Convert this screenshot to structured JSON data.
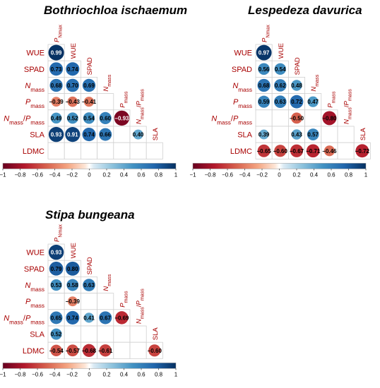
{
  "chart_data": [
    {
      "type": "heatmap",
      "title": "Bothriochloa ischaemum",
      "variables": [
        "P_Nmax",
        "WUE",
        "SPAD",
        "N_mass",
        "P_mass",
        "N_mass/P_mass",
        "SLA",
        "LDMC"
      ],
      "row_labels": [
        "WUE",
        "SPAD",
        "N_mass",
        "P_mass",
        "N_mass/P_mass",
        "SLA",
        "LDMC"
      ],
      "column_labels": [
        "P_Nmax",
        "WUE",
        "SPAD",
        "N_mass",
        "P_mass",
        "N_mass/P_mass",
        "SLA"
      ],
      "cells": [
        {
          "row": "WUE",
          "col": "P_Nmax",
          "value": 0.99
        },
        {
          "row": "SPAD",
          "col": "P_Nmax",
          "value": 0.73
        },
        {
          "row": "SPAD",
          "col": "WUE",
          "value": 0.74
        },
        {
          "row": "N_mass",
          "col": "P_Nmax",
          "value": 0.68
        },
        {
          "row": "N_mass",
          "col": "WUE",
          "value": 0.7
        },
        {
          "row": "N_mass",
          "col": "SPAD",
          "value": 0.69
        },
        {
          "row": "P_mass",
          "col": "P_Nmax",
          "value": -0.39
        },
        {
          "row": "P_mass",
          "col": "WUE",
          "value": -0.43
        },
        {
          "row": "P_mass",
          "col": "SPAD",
          "value": -0.41
        },
        {
          "row": "N_mass/P_mass",
          "col": "P_Nmax",
          "value": 0.49
        },
        {
          "row": "N_mass/P_mass",
          "col": "WUE",
          "value": 0.52
        },
        {
          "row": "N_mass/P_mass",
          "col": "SPAD",
          "value": 0.54
        },
        {
          "row": "N_mass/P_mass",
          "col": "N_mass",
          "value": 0.6
        },
        {
          "row": "N_mass/P_mass",
          "col": "P_mass",
          "value": -0.93
        },
        {
          "row": "SLA",
          "col": "P_Nmax",
          "value": 0.93
        },
        {
          "row": "SLA",
          "col": "WUE",
          "value": 0.91
        },
        {
          "row": "SLA",
          "col": "SPAD",
          "value": 0.74
        },
        {
          "row": "SLA",
          "col": "N_mass",
          "value": 0.66
        },
        {
          "row": "SLA",
          "col": "N_mass/P_mass",
          "value": 0.4
        }
      ],
      "colorbar": {
        "min": -1,
        "max": 1,
        "ticks": [
          "−1",
          "−0.8",
          "−0.6",
          "−0.4",
          "−0.2",
          "0",
          "0.2",
          "0.4",
          "0.6",
          "0.8",
          "1"
        ]
      }
    },
    {
      "type": "heatmap",
      "title": "Lespedeza davurica",
      "variables": [
        "P_Nmax",
        "WUE",
        "SPAD",
        "N_mass",
        "P_mass",
        "N_mass/P_mass",
        "SLA",
        "LDMC"
      ],
      "row_labels": [
        "WUE",
        "SPAD",
        "N_mass",
        "P_mass",
        "N_mass/P_mass",
        "SLA",
        "LDMC"
      ],
      "column_labels": [
        "P_Nmax",
        "WUE",
        "SPAD",
        "N_mass",
        "P_mass",
        "N_mass/P_mass",
        "SLA"
      ],
      "cells": [
        {
          "row": "WUE",
          "col": "P_Nmax",
          "value": 0.97
        },
        {
          "row": "SPAD",
          "col": "P_Nmax",
          "value": 0.56
        },
        {
          "row": "SPAD",
          "col": "WUE",
          "value": 0.54
        },
        {
          "row": "N_mass",
          "col": "P_Nmax",
          "value": 0.68
        },
        {
          "row": "N_mass",
          "col": "WUE",
          "value": 0.62
        },
        {
          "row": "N_mass",
          "col": "SPAD",
          "value": 0.48
        },
        {
          "row": "P_mass",
          "col": "P_Nmax",
          "value": 0.59
        },
        {
          "row": "P_mass",
          "col": "WUE",
          "value": 0.63
        },
        {
          "row": "P_mass",
          "col": "SPAD",
          "value": 0.72
        },
        {
          "row": "P_mass",
          "col": "N_mass",
          "value": 0.47
        },
        {
          "row": "N_mass/P_mass",
          "col": "SPAD",
          "value": -0.5
        },
        {
          "row": "N_mass/P_mass",
          "col": "P_mass",
          "value": -0.8
        },
        {
          "row": "SLA",
          "col": "P_Nmax",
          "value": 0.39
        },
        {
          "row": "SLA",
          "col": "SPAD",
          "value": 0.43
        },
        {
          "row": "SLA",
          "col": "N_mass",
          "value": 0.57
        },
        {
          "row": "LDMC",
          "col": "P_Nmax",
          "value": -0.65
        },
        {
          "row": "LDMC",
          "col": "WUE",
          "value": -0.6
        },
        {
          "row": "LDMC",
          "col": "SPAD",
          "value": -0.67
        },
        {
          "row": "LDMC",
          "col": "N_mass",
          "value": -0.71
        },
        {
          "row": "LDMC",
          "col": "P_mass",
          "value": -0.46
        },
        {
          "row": "LDMC",
          "col": "SLA",
          "value": -0.72
        }
      ],
      "colorbar": {
        "min": -1,
        "max": 1,
        "ticks": [
          "−1",
          "−0.8",
          "−0.6",
          "−0.4",
          "−0.2",
          "0",
          "0.2",
          "0.4",
          "0.6",
          "0.8",
          "1"
        ]
      }
    },
    {
      "type": "heatmap",
      "title": "Stipa bungeana",
      "variables": [
        "P_Nmax",
        "WUE",
        "SPAD",
        "N_mass",
        "P_mass",
        "N_mass/P_mass",
        "SLA",
        "LDMC"
      ],
      "row_labels": [
        "WUE",
        "SPAD",
        "N_mass",
        "P_mass",
        "N_mass/P_mass",
        "SLA",
        "LDMC"
      ],
      "column_labels": [
        "P_Nmax",
        "WUE",
        "SPAD",
        "N_mass",
        "P_mass",
        "N_mass/P_mass",
        "SLA"
      ],
      "cells": [
        {
          "row": "WUE",
          "col": "P_Nmax",
          "value": 0.93
        },
        {
          "row": "SPAD",
          "col": "P_Nmax",
          "value": 0.79
        },
        {
          "row": "SPAD",
          "col": "WUE",
          "value": 0.8
        },
        {
          "row": "N_mass",
          "col": "P_Nmax",
          "value": 0.53
        },
        {
          "row": "N_mass",
          "col": "WUE",
          "value": 0.58
        },
        {
          "row": "N_mass",
          "col": "SPAD",
          "value": 0.63
        },
        {
          "row": "P_mass",
          "col": "WUE",
          "value": -0.39
        },
        {
          "row": "N_mass/P_mass",
          "col": "P_Nmax",
          "value": 0.65
        },
        {
          "row": "N_mass/P_mass",
          "col": "WUE",
          "value": 0.74
        },
        {
          "row": "N_mass/P_mass",
          "col": "SPAD",
          "value": 0.41
        },
        {
          "row": "N_mass/P_mass",
          "col": "N_mass",
          "value": 0.67
        },
        {
          "row": "N_mass/P_mass",
          "col": "P_mass",
          "value": -0.69
        },
        {
          "row": "SLA",
          "col": "P_Nmax",
          "value": 0.52
        },
        {
          "row": "LDMC",
          "col": "P_Nmax",
          "value": -0.54
        },
        {
          "row": "LDMC",
          "col": "WUE",
          "value": -0.57
        },
        {
          "row": "LDMC",
          "col": "SPAD",
          "value": -0.68
        },
        {
          "row": "LDMC",
          "col": "N_mass",
          "value": -0.61
        },
        {
          "row": "LDMC",
          "col": "SLA",
          "value": -0.6
        }
      ],
      "colorbar": {
        "min": -1,
        "max": 1,
        "ticks": [
          "−1",
          "−0.8",
          "−0.6",
          "−0.4",
          "−0.2",
          "0",
          "0.2",
          "0.4",
          "0.6",
          "0.8",
          "1"
        ]
      }
    }
  ]
}
